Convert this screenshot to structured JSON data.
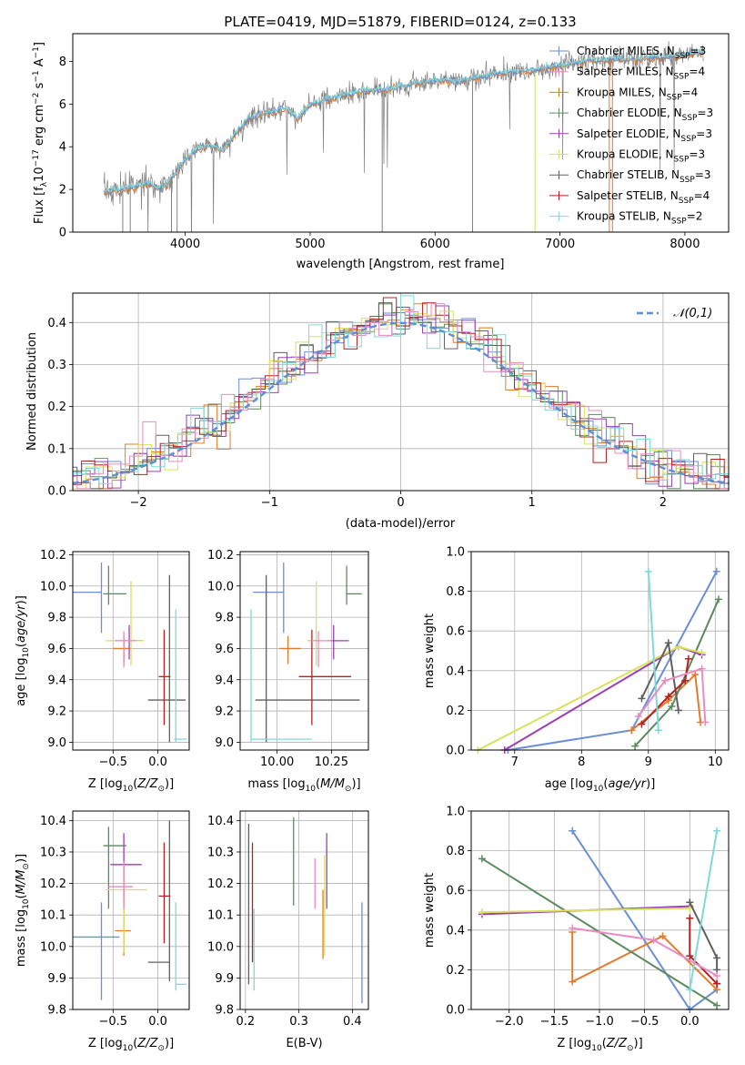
{
  "figure_title": "PLATE=0419, MJD=51879, FIBERID=0124, z=0.133",
  "colors": [
    "#6a8fd6",
    "#e07b2f",
    "#5b8a5f",
    "#9b3fb5",
    "#d8e25a",
    "#606060",
    "#b22222",
    "#7fd9d9",
    "#e88cc2",
    "#c8860a",
    "#e0d050"
  ],
  "chart_data": [
    {
      "id": "spectrum",
      "type": "line",
      "title": "PLATE=0419, MJD=51879, FIBERID=0124, z=0.133",
      "xlabel": "wavelength [Angstrom, rest frame]",
      "ylabel": "Flux [f_λ 10^-17 erg cm^-2 s^-1 A^-1]",
      "xlim": [
        3100,
        8350
      ],
      "ylim": [
        0,
        9.3
      ],
      "xticks": [
        4000,
        5000,
        6000,
        7000,
        8000
      ],
      "yticks": [
        0,
        2,
        4,
        6,
        8
      ],
      "legend_position": "top-right",
      "legend": [
        {
          "label": "Chabrier MILES, N_SSP=3",
          "color": "#6a8fd6"
        },
        {
          "label": "Salpeter MILES, N_SSP=4",
          "color": "#e88cc2"
        },
        {
          "label": "Kroupa MILES, N_SSP=4",
          "color": "#c8860a"
        },
        {
          "label": "Chabrier ELODIE, N_SSP=3",
          "color": "#5b8a5f"
        },
        {
          "label": "Salpeter ELODIE, N_SSP=3",
          "color": "#9b3fb5"
        },
        {
          "label": "Kroupa ELODIE, N_SSP=3",
          "color": "#d8e25a"
        },
        {
          "label": "Chabrier STELIB, N_SSP=3",
          "color": "#606060"
        },
        {
          "label": "Salpeter STELIB, N_SSP=4",
          "color": "#b22222"
        },
        {
          "label": "Kroupa STELIB, N_SSP=2",
          "color": "#7fd9d9"
        }
      ],
      "data_series": {
        "name": "data",
        "x": [
          3350,
          3500,
          3700,
          3800,
          3900,
          4000,
          4100,
          4200,
          4300,
          4400,
          4500,
          4600,
          4800,
          4900,
          5000,
          5200,
          5400,
          5600,
          5800,
          6000,
          6200,
          6400,
          6600,
          6800,
          7000,
          7200,
          7400,
          7600,
          7800,
          8000,
          8100
        ],
        "y": [
          1.9,
          2.0,
          2.3,
          2.0,
          2.6,
          3.4,
          3.9,
          4.1,
          3.8,
          4.6,
          5.3,
          5.5,
          5.8,
          5.3,
          6.0,
          6.3,
          6.6,
          6.7,
          6.9,
          7.1,
          7.1,
          7.3,
          7.5,
          7.6,
          7.8,
          8.0,
          8.1,
          8.1,
          8.2,
          8.3,
          8.4
        ]
      }
    },
    {
      "id": "residuals",
      "type": "histogram",
      "xlabel": "(data-model)/error",
      "ylabel": "Normed distribution",
      "xlim": [
        -2.5,
        2.5
      ],
      "ylim": [
        0,
        0.47
      ],
      "xticks": [
        -2,
        -1,
        0,
        1,
        2
      ],
      "yticks": [
        0.0,
        0.1,
        0.2,
        0.3,
        0.4
      ],
      "legend_position": "top-right",
      "legend": [
        {
          "label": "𝒩(0,1)",
          "style": "dashed",
          "color": "#5b8fd6"
        }
      ],
      "bin_width": 0.1
    },
    {
      "id": "age_vs_Z",
      "type": "errorbar",
      "xlabel": "Z [log10(Z/Z⊙)]",
      "ylabel": "age [log10(age/yr)]",
      "xlim": [
        -0.95,
        0.35
      ],
      "ylim": [
        8.95,
        10.22
      ],
      "xticks": [
        -0.5,
        0.0
      ],
      "xticklabels": [
        "−0.5",
        "0.0"
      ],
      "yticks": [
        9.0,
        9.2,
        9.4,
        9.6,
        9.8,
        10.0,
        10.2
      ],
      "points": [
        {
          "x": -0.63,
          "y": 9.96,
          "xerr": [
            0.32,
            0.0
          ],
          "yerr": [
            0.26,
            0.19
          ],
          "color": "#6a8fd6"
        },
        {
          "x": -0.38,
          "y": 9.6,
          "xerr": [
            0.12,
            0.08
          ],
          "yerr": [
            0.1,
            0.08
          ],
          "color": "#e07b2f"
        },
        {
          "x": -0.55,
          "y": 9.95,
          "xerr": [
            0.06,
            0.2
          ],
          "yerr": [
            0.07,
            0.18
          ],
          "color": "#5b8a5f"
        },
        {
          "x": -0.32,
          "y": 9.65,
          "xerr": [
            0.12,
            0.14
          ],
          "yerr": [
            0.12,
            0.1
          ],
          "color": "#9b3fb5"
        },
        {
          "x": -0.3,
          "y": 9.65,
          "xerr": [
            0.28,
            0.15
          ],
          "yerr": [
            0.16,
            0.38
          ],
          "color": "#d8e25a"
        },
        {
          "x": 0.13,
          "y": 9.27,
          "xerr": [
            0.24,
            0.18
          ],
          "yerr": [
            0.27,
            0.8
          ],
          "color": "#606060"
        },
        {
          "x": 0.07,
          "y": 9.42,
          "xerr": [
            0.06,
            0.07
          ],
          "yerr": [
            0.31,
            0.3
          ],
          "color": "#b22222"
        },
        {
          "x": 0.2,
          "y": 9.02,
          "xerr": [
            0.02,
            0.12
          ],
          "yerr": [
            0.02,
            0.83
          ],
          "color": "#7fd9d9"
        },
        {
          "x": -0.38,
          "y": 9.65,
          "xerr": [
            0.1,
            0.13
          ],
          "yerr": [
            0.17,
            0.06
          ],
          "color": "#e88cc2"
        }
      ]
    },
    {
      "id": "age_vs_mass",
      "type": "errorbar",
      "xlabel": "mass [log10(M/M⊙)]",
      "xlim": [
        9.83,
        10.42
      ],
      "ylim": [
        8.95,
        10.22
      ],
      "xticks": [
        10.0,
        10.25
      ],
      "xticklabels": [
        "10.00",
        "10.25"
      ],
      "yticks": [
        9.0,
        9.2,
        9.4,
        9.6,
        9.8,
        10.0,
        10.2
      ],
      "points": [
        {
          "x": 10.03,
          "y": 9.96,
          "xerr": [
            0.14,
            0.0
          ],
          "yerr": [
            0.26,
            0.19
          ],
          "color": "#6a8fd6"
        },
        {
          "x": 10.05,
          "y": 9.6,
          "xerr": [
            0.04,
            0.06
          ],
          "yerr": [
            0.1,
            0.08
          ],
          "color": "#e07b2f"
        },
        {
          "x": 10.32,
          "y": 9.95,
          "xerr": [
            0.0,
            0.07
          ],
          "yerr": [
            0.07,
            0.18
          ],
          "color": "#5b8a5f"
        },
        {
          "x": 10.26,
          "y": 9.65,
          "xerr": [
            0.03,
            0.07
          ],
          "yerr": [
            0.12,
            0.1
          ],
          "color": "#9b3fb5"
        },
        {
          "x": 10.18,
          "y": 9.65,
          "xerr": [
            0.04,
            0.03
          ],
          "yerr": [
            0.16,
            0.38
          ],
          "color": "#d8e25a"
        },
        {
          "x": 9.95,
          "y": 9.27,
          "xerr": [
            0.05,
            0.43
          ],
          "yerr": [
            0.27,
            0.8
          ],
          "color": "#606060"
        },
        {
          "x": 10.16,
          "y": 9.42,
          "xerr": [
            0.06,
            0.18
          ],
          "yerr": [
            0.31,
            0.3
          ],
          "color": "#b22222"
        },
        {
          "x": 9.88,
          "y": 9.02,
          "xerr": [
            0.0,
            0.28
          ],
          "yerr": [
            0.02,
            0.83
          ],
          "color": "#7fd9d9"
        },
        {
          "x": 10.19,
          "y": 9.65,
          "xerr": [
            0.04,
            0.06
          ],
          "yerr": [
            0.17,
            0.06
          ],
          "color": "#e88cc2"
        }
      ]
    },
    {
      "id": "weight_vs_age",
      "type": "line",
      "xlabel": "age [log10(age/yr)]",
      "ylabel": "mass weight",
      "xlim": [
        6.35,
        10.2
      ],
      "ylim": [
        0,
        1.0
      ],
      "xticks": [
        7,
        8,
        9,
        10
      ],
      "yticks": [
        0.0,
        0.2,
        0.4,
        0.6,
        0.8,
        1.0
      ],
      "series": [
        {
          "color": "#6a8fd6",
          "x": [
            6.9,
            8.75,
            10.02
          ],
          "y": [
            0.0,
            0.1,
            0.9
          ]
        },
        {
          "color": "#e07b2f",
          "x": [
            8.75,
            9.3,
            9.7,
            9.78
          ],
          "y": [
            0.1,
            0.25,
            0.38,
            0.14
          ]
        },
        {
          "color": "#5b8a5f",
          "x": [
            8.8,
            9.35,
            10.05
          ],
          "y": [
            0.02,
            0.22,
            0.76
          ]
        },
        {
          "color": "#9b3fb5",
          "x": [
            6.85,
            9.45,
            9.8
          ],
          "y": [
            0.0,
            0.52,
            0.48
          ]
        },
        {
          "color": "#d8e25a",
          "x": [
            6.45,
            9.45,
            9.8
          ],
          "y": [
            0.0,
            0.52,
            0.49
          ]
        },
        {
          "color": "#606060",
          "x": [
            8.9,
            9.3,
            9.45
          ],
          "y": [
            0.26,
            0.54,
            0.2
          ]
        },
        {
          "color": "#b22222",
          "x": [
            8.9,
            9.3,
            9.55,
            9.6
          ],
          "y": [
            0.13,
            0.27,
            0.35,
            0.46
          ]
        },
        {
          "color": "#7fd9d9",
          "x": [
            9.0,
            9.15
          ],
          "y": [
            0.9,
            0.1
          ]
        },
        {
          "color": "#e88cc2",
          "x": [
            8.85,
            9.25,
            9.8,
            9.85
          ],
          "y": [
            0.17,
            0.35,
            0.41,
            0.14
          ]
        }
      ]
    },
    {
      "id": "mass_vs_Z",
      "type": "errorbar",
      "xlabel": "Z [log10(Z/Z⊙)]",
      "ylabel": "mass [log10(M/M⊙)]",
      "xlim": [
        -0.95,
        0.35
      ],
      "ylim": [
        9.8,
        10.43
      ],
      "xticks": [
        -0.5,
        0.0
      ],
      "xticklabels": [
        "−0.5",
        "0.0"
      ],
      "yticks": [
        9.8,
        9.9,
        10.0,
        10.1,
        10.2,
        10.3,
        10.4
      ],
      "points": [
        {
          "x": -0.63,
          "y": 10.03,
          "xerr": [
            0.32,
            0.2
          ],
          "yerr": [
            0.2,
            0.11
          ],
          "color": "#6a8fd6"
        },
        {
          "x": -0.38,
          "y": 10.05,
          "xerr": [
            0.1,
            0.08
          ],
          "yerr": [
            0.08,
            0.15
          ],
          "color": "#e07b2f"
        },
        {
          "x": -0.55,
          "y": 10.32,
          "xerr": [
            0.06,
            0.2
          ],
          "yerr": [
            0.2,
            0.06
          ],
          "color": "#5b8a5f"
        },
        {
          "x": -0.38,
          "y": 10.26,
          "xerr": [
            0.15,
            0.2
          ],
          "yerr": [
            0.11,
            0.1
          ],
          "color": "#9b3fb5"
        },
        {
          "x": -0.38,
          "y": 10.18,
          "xerr": [
            0.2,
            0.26
          ],
          "yerr": [
            0.2,
            0.08
          ],
          "color": "#d8e25a"
        },
        {
          "x": 0.13,
          "y": 9.95,
          "xerr": [
            0.24,
            0.0
          ],
          "yerr": [
            0.06,
            0.45
          ],
          "color": "#606060"
        },
        {
          "x": 0.07,
          "y": 10.16,
          "xerr": [
            0.06,
            0.07
          ],
          "yerr": [
            0.15,
            0.17
          ],
          "color": "#b22222"
        },
        {
          "x": 0.2,
          "y": 9.88,
          "xerr": [
            0.0,
            0.12
          ],
          "yerr": [
            0.02,
            0.26
          ],
          "color": "#7fd9d9"
        },
        {
          "x": -0.38,
          "y": 10.19,
          "xerr": [
            0.17,
            0.1
          ],
          "yerr": [
            0.07,
            0.08
          ],
          "color": "#e88cc2"
        }
      ]
    },
    {
      "id": "mass_vs_EBV",
      "type": "errorbar",
      "xlabel": "E(B-V)",
      "xlim": [
        0.19,
        0.43
      ],
      "ylim": [
        9.8,
        10.43
      ],
      "xticks": [
        0.2,
        0.3,
        0.4
      ],
      "yticks": [
        9.8,
        9.9,
        10.0,
        10.1,
        10.2,
        10.3,
        10.4
      ],
      "points": [
        {
          "x": 0.418,
          "y": 9.98,
          "yerr": [
            0.16,
            0.16
          ],
          "color": "#6a8fd6"
        },
        {
          "x": 0.345,
          "y": 10.0,
          "yerr": [
            0.04,
            0.18
          ],
          "color": "#e07b2f"
        },
        {
          "x": 0.29,
          "y": 10.27,
          "yerr": [
            0.14,
            0.14
          ],
          "color": "#5b8a5f"
        },
        {
          "x": 0.352,
          "y": 10.24,
          "yerr": [
            0.12,
            0.12
          ],
          "color": "#9b3fb5"
        },
        {
          "x": 0.348,
          "y": 10.17,
          "yerr": [
            0.2,
            0.12
          ],
          "color": "#d8e25a"
        },
        {
          "x": 0.206,
          "y": 10.13,
          "yerr": [
            0.25,
            0.26
          ],
          "color": "#606060"
        },
        {
          "x": 0.213,
          "y": 10.25,
          "yerr": [
            0.3,
            0.08
          ],
          "color": "#b22222"
        },
        {
          "x": 0.216,
          "y": 9.99,
          "yerr": [
            0.13,
            0.13
          ],
          "color": "#7fd9d9"
        },
        {
          "x": 0.33,
          "y": 10.2,
          "yerr": [
            0.08,
            0.08
          ],
          "color": "#e88cc2"
        }
      ]
    },
    {
      "id": "weight_vs_Z",
      "type": "line",
      "xlabel": "Z [log10(Z/Z⊙)]",
      "ylabel": "mass weight",
      "xlim": [
        -2.42,
        0.43
      ],
      "ylim": [
        0,
        1.0
      ],
      "xticks": [
        -2.0,
        -1.5,
        -1.0,
        -0.5,
        0.0
      ],
      "xticklabels": [
        "−2.0",
        "−1.5",
        "−1.0",
        "−0.5",
        "0.0"
      ],
      "yticks": [
        0.0,
        0.2,
        0.4,
        0.6,
        0.8,
        1.0
      ],
      "series": [
        {
          "color": "#6a8fd6",
          "x": [
            -1.3,
            0.0,
            0.3
          ],
          "y": [
            0.9,
            0.0,
            0.1
          ]
        },
        {
          "color": "#e07b2f",
          "x": [
            -1.3,
            -1.3,
            -0.3,
            0.3
          ],
          "y": [
            0.39,
            0.14,
            0.37,
            0.1
          ]
        },
        {
          "color": "#5b8a5f",
          "x": [
            -2.3,
            0.3
          ],
          "y": [
            0.76,
            0.02
          ]
        },
        {
          "color": "#9b3fb5",
          "x": [
            -2.3,
            0.0
          ],
          "y": [
            0.48,
            0.52
          ]
        },
        {
          "color": "#d8e25a",
          "x": [
            -2.3,
            0.0
          ],
          "y": [
            0.49,
            0.51
          ]
        },
        {
          "color": "#606060",
          "x": [
            0.0,
            0.3,
            0.3
          ],
          "y": [
            0.54,
            0.26,
            0.2
          ]
        },
        {
          "color": "#b22222",
          "x": [
            0.0,
            0.0,
            0.3,
            0.3
          ],
          "y": [
            0.46,
            0.27,
            0.13,
            0.13
          ]
        },
        {
          "color": "#7fd9d9",
          "x": [
            0.0,
            0.3
          ],
          "y": [
            0.1,
            0.9
          ]
        },
        {
          "color": "#e88cc2",
          "x": [
            -1.3,
            -0.4,
            0.3
          ],
          "y": [
            0.41,
            0.35,
            0.17
          ]
        }
      ]
    }
  ]
}
